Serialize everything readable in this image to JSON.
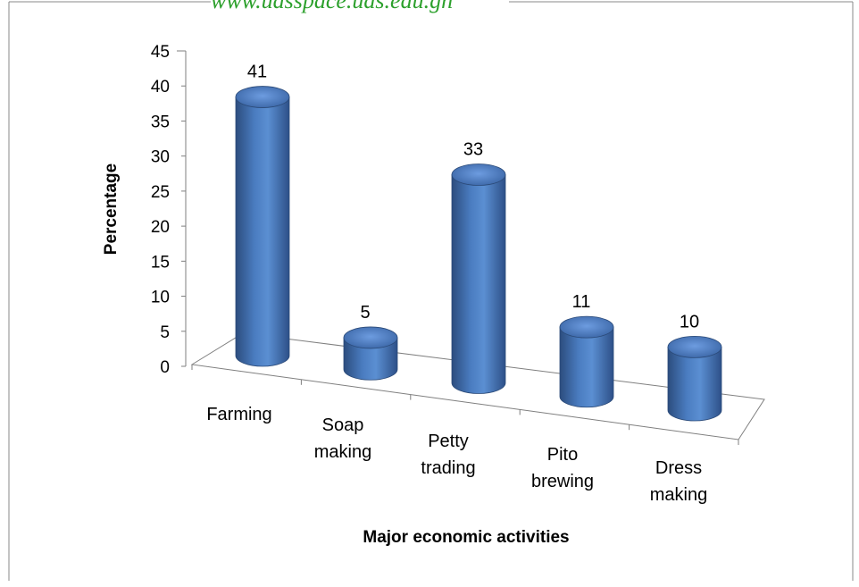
{
  "watermark": "www.udsspace.uds.edu.gh",
  "chart_data": {
    "type": "bar",
    "style": "3d-cylinder",
    "categories": [
      [
        "Farming"
      ],
      [
        "Soap",
        "making"
      ],
      [
        "Petty",
        "trading"
      ],
      [
        "Pito",
        "brewing"
      ],
      [
        "Dress",
        "making"
      ]
    ],
    "values": [
      41,
      5,
      33,
      11,
      10
    ],
    "data_labels": [
      "41",
      "5",
      "33",
      "11",
      "10"
    ],
    "xlabel": "Major economic activities",
    "ylabel": "Percentage",
    "ylim": [
      0,
      45
    ],
    "yticks": [
      "0",
      "5",
      "10",
      "15",
      "20",
      "25",
      "30",
      "35",
      "40",
      "45"
    ],
    "grid": false,
    "legend": "none",
    "bar_color": "#4f81bd"
  }
}
